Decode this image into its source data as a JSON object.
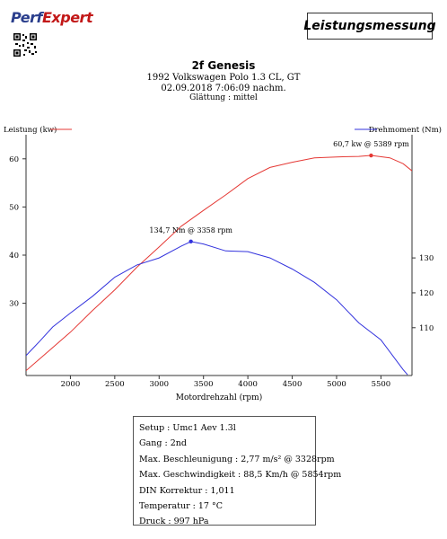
{
  "logo": {
    "part1": "Perf",
    "part2": "Expert"
  },
  "header_box": "Leistungsmessung",
  "header": {
    "name": "2f Genesis",
    "vehicle": "1992 Volkswagen Polo 1.3 CL, GT",
    "datetime": "02.09.2018 7:06:09 nachm.",
    "smoothing": "Glättung : mittel"
  },
  "chart_data": {
    "type": "line",
    "xlabel": "Motordrehzahl (rpm)",
    "ylabel_left": "Leistung (kw)",
    "ylabel_right": "Drehmoment (Nm)",
    "xlim": [
      1500,
      5850
    ],
    "x_ticks": [
      2000,
      2500,
      3000,
      3500,
      4000,
      4500,
      5000,
      5500
    ],
    "ylim_left": [
      15,
      65
    ],
    "y_ticks_left": [
      30,
      40,
      50,
      60
    ],
    "ylim_right": [
      96.3,
      165.3
    ],
    "y_ticks_right": [
      110,
      120,
      130
    ],
    "series": [
      {
        "name": "Leistung (kw)",
        "axis": "left",
        "color": "#e53935",
        "x": [
          1500,
          1750,
          2000,
          2250,
          2500,
          2750,
          3000,
          3250,
          3500,
          3750,
          4000,
          4250,
          4500,
          4750,
          5000,
          5250,
          5389,
          5600,
          5750,
          5850
        ],
        "y": [
          16.0,
          20.0,
          24.0,
          28.5,
          32.8,
          37.5,
          41.7,
          46.0,
          49.3,
          52.5,
          55.9,
          58.2,
          59.3,
          60.2,
          60.4,
          60.5,
          60.7,
          60.2,
          59.0,
          57.5
        ]
      },
      {
        "name": "Drehmoment (Nm)",
        "axis": "right",
        "color": "#3333dd",
        "x": [
          1500,
          1650,
          1800,
          2000,
          2250,
          2500,
          2750,
          3000,
          3250,
          3358,
          3500,
          3750,
          4000,
          4250,
          4500,
          4750,
          5000,
          5250,
          5500,
          5750,
          5800
        ],
        "y": [
          102.0,
          106.0,
          110.2,
          114.2,
          119.0,
          124.5,
          128.0,
          130.0,
          133.4,
          134.7,
          134.0,
          132.0,
          131.8,
          130.0,
          126.8,
          123.0,
          118.0,
          111.4,
          106.5,
          98.0,
          96.5
        ]
      }
    ],
    "annotations": [
      {
        "series": 0,
        "x": 5389,
        "y": 60.7,
        "label": "60,7 kw @ 5389 rpm"
      },
      {
        "series": 1,
        "x": 3358,
        "y": 134.7,
        "label": "134,7 Nm @ 3358 rpm"
      }
    ]
  },
  "info": [
    "Setup : Umc1 Aev 1.3l",
    "Gang : 2nd",
    "Max. Beschleunigung : 2,77 m/s² @ 3328rpm",
    "Max. Geschwindigkeit : 88,5 Km/h @ 5854rpm",
    "DIN Korrektur : 1,011",
    "Temperatur : 17 °C",
    "Druck : 997 hPa"
  ]
}
